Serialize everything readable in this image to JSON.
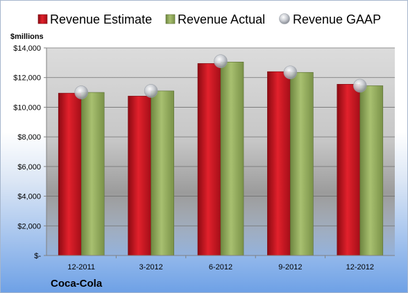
{
  "chart_data": {
    "type": "bar",
    "company": "Coca-Cola",
    "y_unit_label": "$millions",
    "categories": [
      "12-2011",
      "3-2012",
      "6-2012",
      "9-2012",
      "12-2012"
    ],
    "series": [
      {
        "name": "Revenue Estimate",
        "kind": "bar",
        "color": "#c8101c",
        "values": [
          10950,
          10750,
          12950,
          12400,
          11550
        ]
      },
      {
        "name": "Revenue Actual",
        "kind": "bar",
        "color": "#8ea85a",
        "values": [
          11000,
          11100,
          13050,
          12350,
          11450
        ]
      },
      {
        "name": "Revenue GAAP",
        "kind": "marker",
        "color": "#c0c4cc",
        "values": [
          11000,
          11100,
          13100,
          12350,
          11450
        ]
      }
    ],
    "ylim": [
      0,
      14000
    ],
    "yticks": [
      0,
      2000,
      4000,
      6000,
      8000,
      10000,
      12000,
      14000
    ],
    "ytick_labels": [
      "$-",
      "$2,000",
      "$4,000",
      "$6,000",
      "$8,000",
      "$10,000",
      "$12,000",
      "$14,000"
    ],
    "grid": true,
    "legend_position": "top"
  }
}
